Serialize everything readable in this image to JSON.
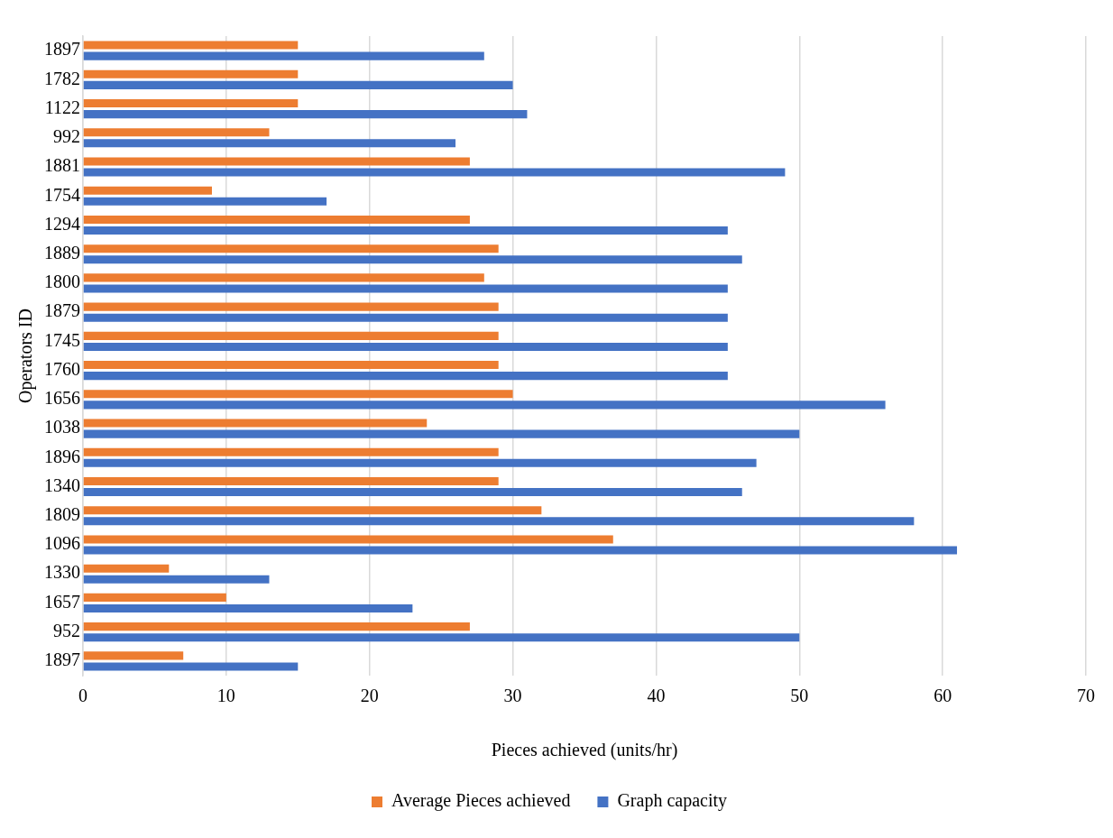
{
  "chart_data": {
    "type": "bar",
    "orientation": "horizontal",
    "xlabel": "Pieces achieved (units/hr)",
    "ylabel": "Operators ID",
    "categories": [
      "1897",
      "1782",
      "1122",
      "992",
      "1881",
      "1754",
      "1294",
      "1889",
      "1800",
      "1879",
      "1745",
      "1760",
      "1656",
      "1038",
      "1896",
      "1340",
      "1809",
      "1096",
      "1330",
      "1657",
      "952",
      "1897"
    ],
    "series": [
      {
        "name": "Average Pieces achieved",
        "color": "#ed7d31",
        "values": [
          15,
          15,
          15,
          13,
          27,
          9,
          27,
          29,
          28,
          29,
          29,
          29,
          30,
          24,
          29,
          29,
          32,
          37,
          6,
          10,
          27,
          7
        ]
      },
      {
        "name": "Graph capacity",
        "color": "#4472c4",
        "values": [
          28,
          30,
          31,
          26,
          49,
          17,
          45,
          46,
          45,
          45,
          45,
          45,
          56,
          50,
          47,
          46,
          58,
          61,
          13,
          23,
          50,
          15
        ]
      }
    ],
    "xlim": [
      0,
      70
    ],
    "xticks": [
      0,
      10,
      20,
      30,
      40,
      50,
      60,
      70
    ],
    "grid": "x",
    "legend": "bottom"
  }
}
